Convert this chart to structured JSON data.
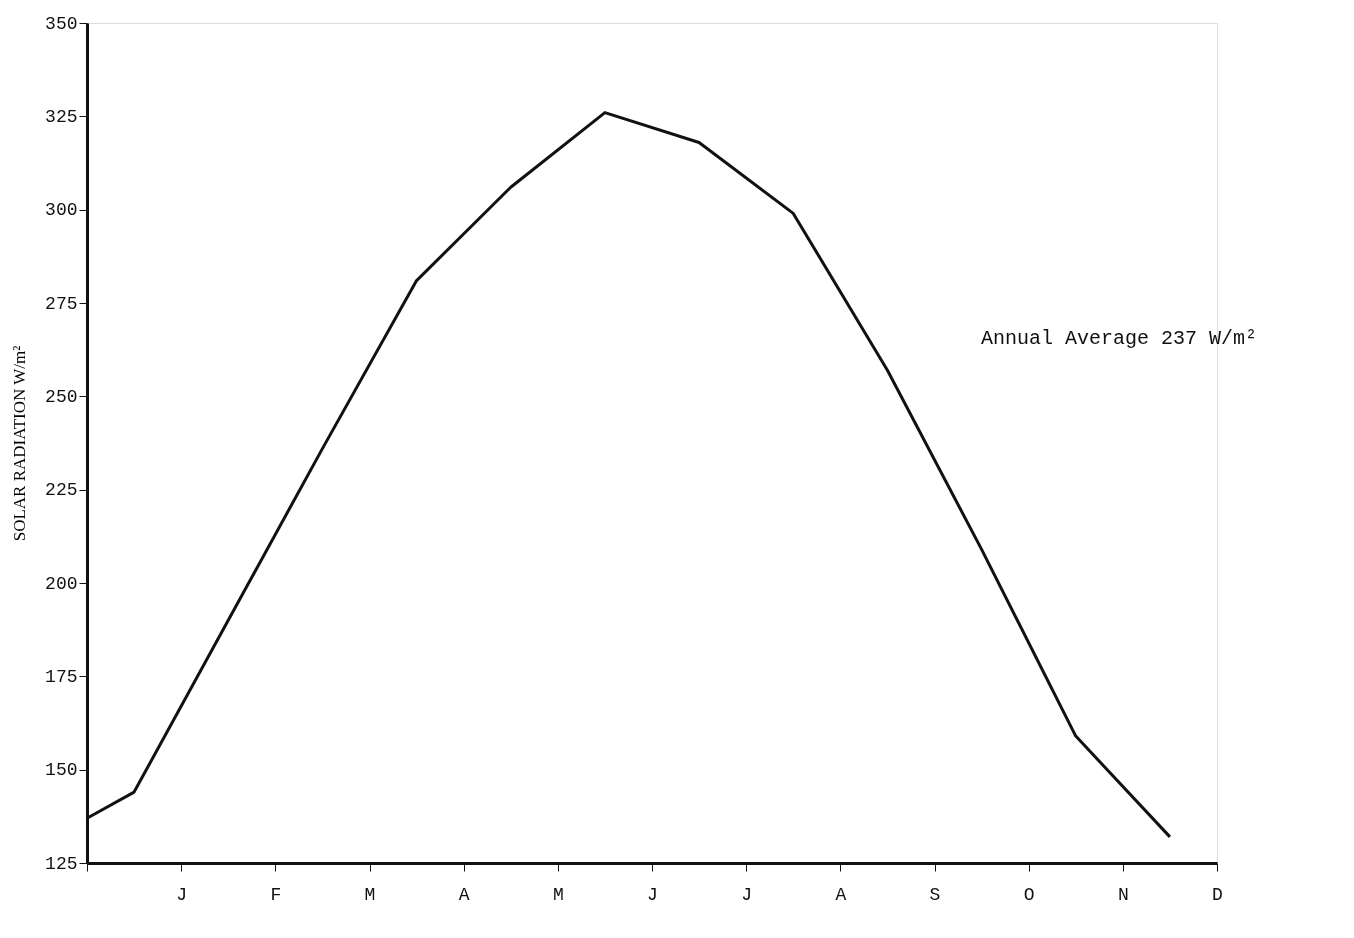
{
  "chart_data": {
    "type": "line",
    "ylabel": "SOLAR RADIATION W/m²",
    "categories": [
      null,
      null,
      "J",
      null,
      "F",
      null,
      "M",
      null,
      "A",
      null,
      "M",
      null,
      "J",
      null,
      "J",
      null,
      "A",
      null,
      "S",
      null,
      "O",
      null,
      "N",
      null,
      "D"
    ],
    "series": [
      {
        "color": "#111111",
        "values": [
          137,
          144,
          null,
          190,
          null,
          236,
          null,
          281,
          null,
          306,
          null,
          326,
          null,
          318,
          null,
          299,
          null,
          257,
          null,
          209,
          null,
          159,
          null,
          132,
          null
        ]
      }
    ],
    "ylim": [
      125,
      350
    ],
    "yticks": [
      125,
      150,
      175,
      200,
      225,
      250,
      275,
      300,
      325,
      350
    ],
    "annotations": [
      "Annual Average 237 W/m²"
    ],
    "grid": false,
    "marker": "none",
    "line_style": "solid"
  }
}
